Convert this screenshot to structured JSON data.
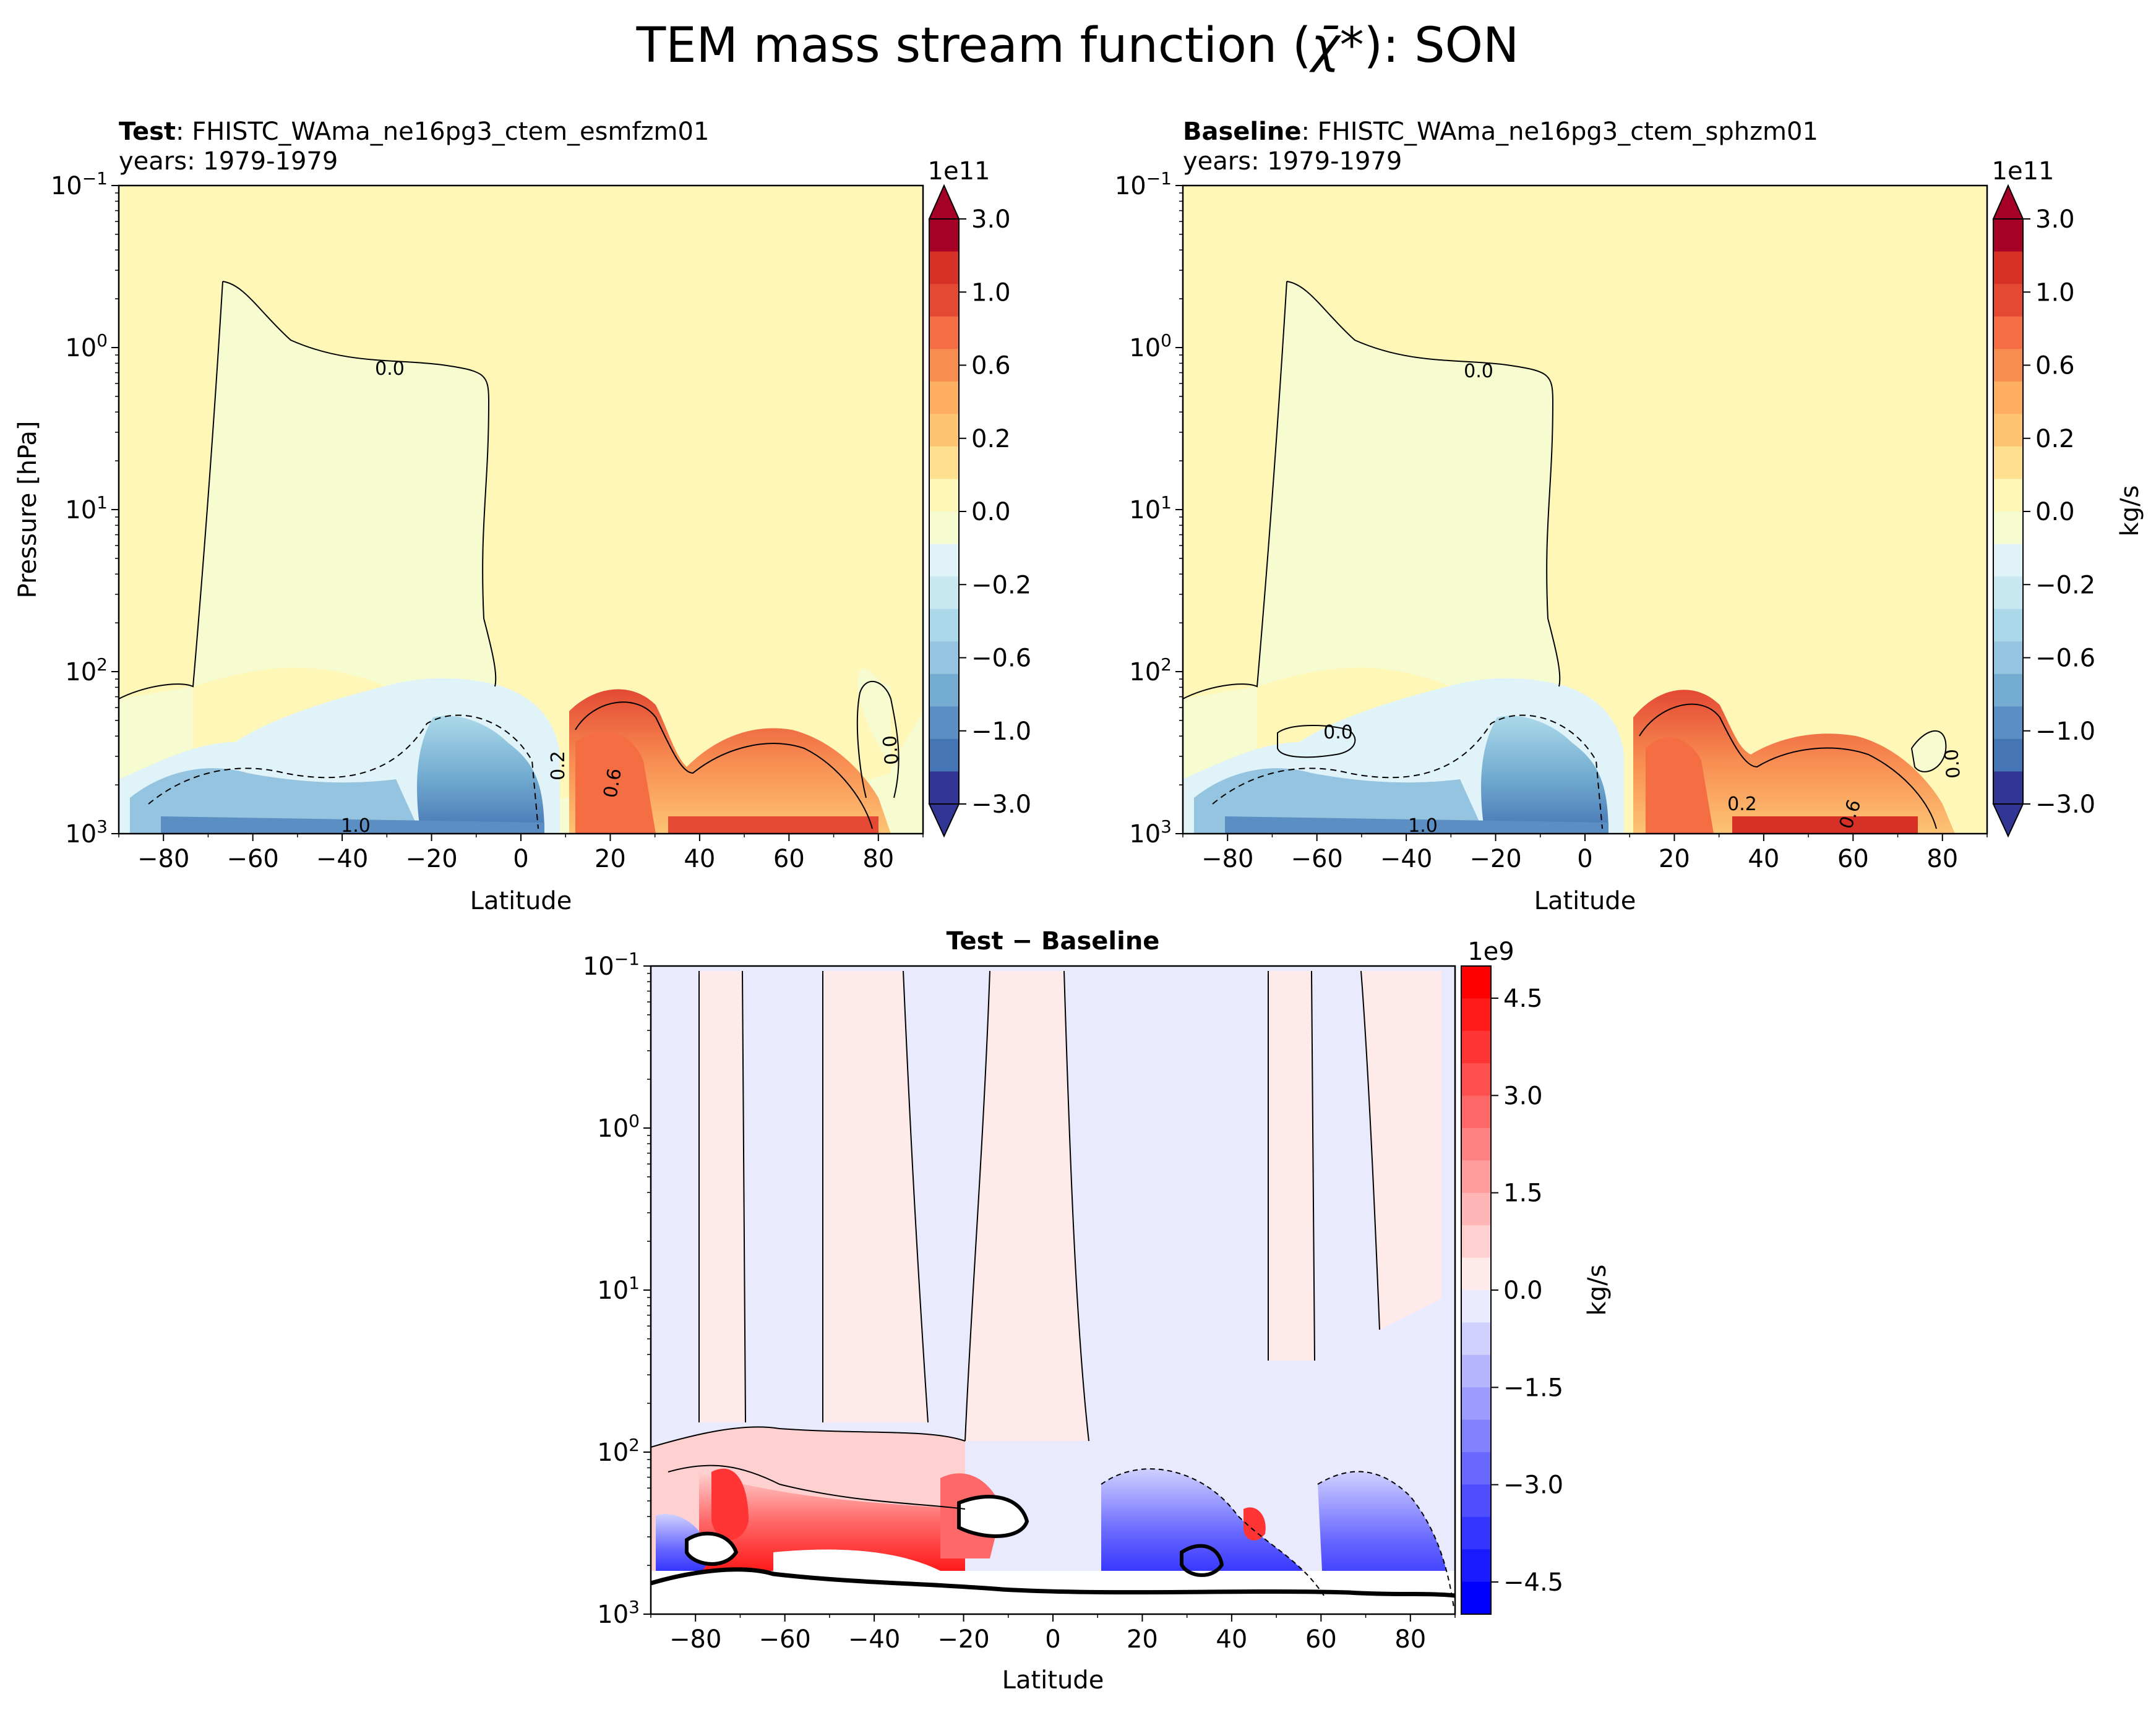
{
  "figure": {
    "title_text": "TEM mass stream function (",
    "title_symbol": "χ̄*",
    "title_tail": "): SON"
  },
  "colors": {
    "cmap_main": [
      "#313695",
      "#4575b4",
      "#5b8ec3",
      "#74add1",
      "#94c4df",
      "#abd9e9",
      "#c9e7f0",
      "#e0f3f8",
      "#f7fbd0",
      "#fff7b7",
      "#fee090",
      "#fdc474",
      "#fdae61",
      "#f88d52",
      "#f46d43",
      "#e34933",
      "#d73027",
      "#a50026"
    ],
    "cmap_diff": [
      "#0000ff",
      "#1a1aff",
      "#3434ff",
      "#4e4eff",
      "#6868ff",
      "#8282ff",
      "#9c9cff",
      "#b6b6ff",
      "#d0d0ff",
      "#eaeaff",
      "#ffeaea",
      "#ffd0d0",
      "#ffb6b6",
      "#ff9c9c",
      "#ff8282",
      "#ff6868",
      "#ff4e4e",
      "#ff3434",
      "#ff1a1a",
      "#ff0000"
    ]
  },
  "chart_data": [
    {
      "type": "heatmap",
      "panel": "test",
      "title_bold": "Test",
      "title_rest": ": FHISTC_WAma_ne16pg3_ctem_esmfzm01",
      "subtitle": "years: 1979-1979",
      "xlabel": "Latitude",
      "ylabel": "Pressure [hPa]",
      "xlim": [
        -90,
        90
      ],
      "ylim_hPa": [
        1000,
        0.1
      ],
      "yscale": "log",
      "x_ticks": [
        "−80",
        "−60",
        "−40",
        "−20",
        "0",
        "20",
        "40",
        "60",
        "80"
      ],
      "y_ticks_base": [
        "10",
        "10",
        "10",
        "10",
        "10"
      ],
      "y_ticks_exp": [
        "−1",
        "0",
        "1",
        "2",
        "3"
      ],
      "colorbar_exponent": "1e11",
      "colorbar_ticks": [
        "3.0",
        "1.0",
        "0.6",
        "0.2",
        "0.0",
        "−0.2",
        "−0.6",
        "−1.0",
        "−3.0"
      ],
      "colorbar_label": "",
      "contour_labels": [
        "0.0",
        "0.2",
        "0.6",
        "1.0",
        "1.0",
        "0.2",
        "0.6",
        "0.0"
      ]
    },
    {
      "type": "heatmap",
      "panel": "baseline",
      "title_bold": "Baseline",
      "title_rest": ": FHISTC_WAma_ne16pg3_ctem_sphzm01",
      "subtitle": "years: 1979-1979",
      "xlabel": "Latitude",
      "ylabel": "",
      "xlim": [
        -90,
        90
      ],
      "ylim_hPa": [
        1000,
        0.1
      ],
      "yscale": "log",
      "x_ticks": [
        "−80",
        "−60",
        "−40",
        "−20",
        "0",
        "20",
        "40",
        "60",
        "80"
      ],
      "y_ticks_base": [
        "10",
        "10",
        "10",
        "10",
        "10"
      ],
      "y_ticks_exp": [
        "−1",
        "0",
        "1",
        "2",
        "3"
      ],
      "colorbar_exponent": "1e11",
      "colorbar_ticks": [
        "3.0",
        "1.0",
        "0.6",
        "0.2",
        "0.0",
        "−0.2",
        "−0.6",
        "−1.0",
        "−3.0"
      ],
      "colorbar_label": "kg/s",
      "contour_labels": [
        "0.0",
        "0.0",
        "1.0",
        "0.2",
        "0.6",
        "0.2",
        "0.6",
        "1.0",
        "0.0"
      ]
    },
    {
      "type": "heatmap",
      "panel": "difference",
      "title_bold": "Test − Baseline",
      "xlabel": "Latitude",
      "xlim": [
        -90,
        90
      ],
      "ylim_hPa": [
        1000,
        0.1
      ],
      "yscale": "log",
      "x_ticks": [
        "−80",
        "−60",
        "−40",
        "−20",
        "0",
        "20",
        "40",
        "60",
        "80"
      ],
      "y_ticks_base": [
        "10",
        "10",
        "10",
        "10",
        "10"
      ],
      "y_ticks_exp": [
        "−1",
        "0",
        "1",
        "2",
        "3"
      ],
      "colorbar_exponent": "1e9",
      "colorbar_ticks": [
        "4.5",
        "3.0",
        "1.5",
        "0.0",
        "−1.5",
        "−3.0",
        "−4.5"
      ],
      "colorbar_label": "kg/s"
    }
  ]
}
